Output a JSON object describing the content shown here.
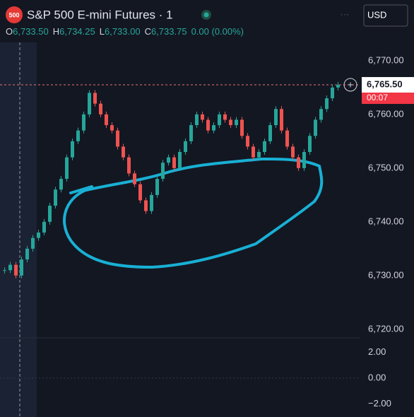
{
  "header": {
    "symbol_badge": "500",
    "title": "S&P 500 E-mini Futures · 1",
    "currency": "USD",
    "ohlc": [
      {
        "key": "O",
        "value": "6,733.50"
      },
      {
        "key": "H",
        "value": "6,734.25"
      },
      {
        "key": "L",
        "value": "6,733.00"
      },
      {
        "key": "C",
        "value": "6,733.75"
      }
    ],
    "change": "0.00 (0.00%)"
  },
  "price": {
    "ylim": [
      6718.4,
      6773.4
    ],
    "yticks": [
      {
        "value": 6770,
        "label": "6,770.00"
      },
      {
        "value": 6760,
        "label": "6,760.00"
      },
      {
        "value": 6750,
        "label": "6,750.00"
      },
      {
        "value": 6740,
        "label": "6,740.00"
      },
      {
        "value": 6730,
        "label": "6,730.00"
      },
      {
        "value": 6720,
        "label": "6,720.00"
      }
    ],
    "last": {
      "value": 6765.5,
      "label": "6,765.50"
    },
    "countdown": "00:07",
    "closes": [
      6731,
      6732,
      6730,
      6733,
      6735,
      6737,
      6738,
      6740,
      6743,
      6746,
      6748,
      6752,
      6755,
      6757,
      6760,
      6764,
      6762,
      6760,
      6758,
      6757,
      6754,
      6752,
      6749,
      6747,
      6744,
      6742,
      6745,
      6748,
      6751,
      6752,
      6750,
      6753,
      6755,
      6758,
      6760,
      6759,
      6757,
      6758,
      6760,
      6759,
      6758,
      6759,
      6756,
      6754,
      6752,
      6753,
      6755,
      6758,
      6761,
      6757,
      6754,
      6752,
      6750,
      6753,
      6756,
      6759,
      6761,
      6763,
      6765,
      6765.5
    ]
  },
  "oscillator": {
    "ylim": [
      -3,
      3
    ],
    "yticks": [
      {
        "value": 2,
        "label": "2.00"
      },
      {
        "value": 0,
        "label": "0.00"
      },
      {
        "value": -2,
        "label": "−2.00"
      }
    ]
  }
}
